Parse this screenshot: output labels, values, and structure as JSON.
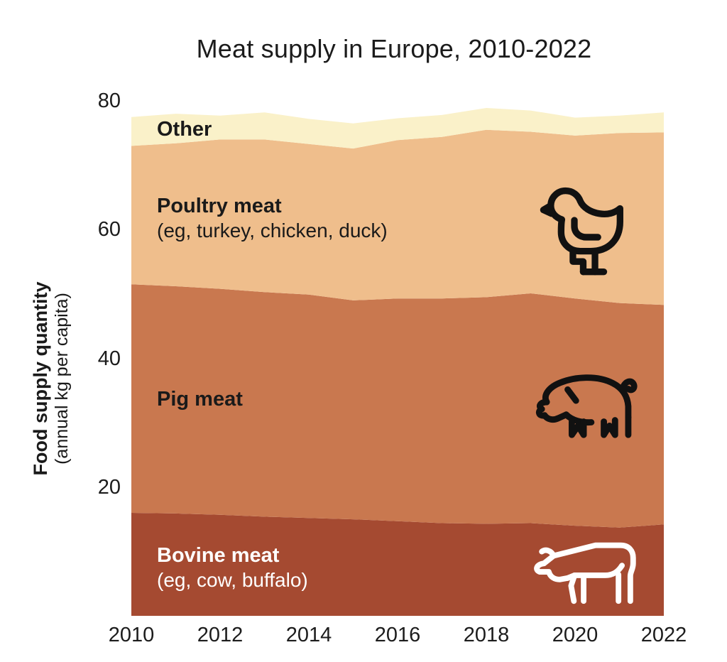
{
  "title": "Meat supply in Europe, 2010-2022",
  "y_axis": {
    "label_bold": "Food supply quantity",
    "label_sub": "(annual kg per capita)"
  },
  "bands": {
    "other": {
      "label": "Other",
      "color": "#FAF1C9",
      "text_color": "#111111"
    },
    "poultry": {
      "label": "Poultry meat",
      "sublabel": "(eg, turkey, chicken, duck)",
      "color": "#EFBE8C",
      "text_color": "#111111",
      "icon": "chicken-icon"
    },
    "pig": {
      "label": "Pig meat",
      "color": "#C9784F",
      "text_color": "#111111",
      "icon": "pig-icon"
    },
    "bovine": {
      "label": "Bovine meat",
      "sublabel": "(eg, cow, buffalo)",
      "color": "#A54A31",
      "text_color": "#FFFFFF",
      "icon": "cow-icon"
    }
  },
  "icon_colors": {
    "chicken": "#111111",
    "pig": "#111111",
    "cow": "#FFFFFF"
  },
  "chart_data": {
    "type": "area",
    "stacked": true,
    "title": "Meat supply in Europe, 2010-2022",
    "xlabel": "",
    "ylabel": "Food supply quantity (annual kg per capita)",
    "x": [
      2010,
      2011,
      2012,
      2013,
      2014,
      2015,
      2016,
      2017,
      2018,
      2019,
      2020,
      2021,
      2022
    ],
    "x_ticks": [
      2010,
      2012,
      2014,
      2016,
      2018,
      2020,
      2022
    ],
    "y_ticks": [
      20,
      40,
      60,
      80
    ],
    "ylim": [
      0,
      80
    ],
    "xlim": [
      2010,
      2022
    ],
    "grid": false,
    "legend_position": "labels-inside-areas",
    "series": [
      {
        "key": "bovine",
        "name": "Bovine meat (eg, cow, buffalo)",
        "color": "#A54A31",
        "values": [
          16.0,
          15.9,
          15.7,
          15.4,
          15.2,
          15.0,
          14.7,
          14.4,
          14.3,
          14.4,
          14.0,
          13.7,
          14.2
        ]
      },
      {
        "key": "pig",
        "name": "Pig meat",
        "color": "#C9784F",
        "values": [
          35.5,
          35.3,
          35.1,
          34.9,
          34.7,
          34.0,
          34.6,
          34.9,
          35.2,
          35.7,
          35.3,
          34.9,
          34.1
        ]
      },
      {
        "key": "poultry",
        "name": "Poultry meat (eg, turkey, chicken, duck)",
        "color": "#EFBE8C",
        "values": [
          21.5,
          22.2,
          23.2,
          23.7,
          23.4,
          23.6,
          24.6,
          25.1,
          26.0,
          25.1,
          25.3,
          26.4,
          26.8
        ]
      },
      {
        "key": "other",
        "name": "Other",
        "color": "#FAF1C9",
        "values": [
          4.5,
          4.6,
          3.7,
          4.2,
          3.9,
          3.9,
          3.4,
          3.4,
          3.4,
          3.3,
          2.8,
          2.7,
          3.1
        ]
      }
    ]
  }
}
